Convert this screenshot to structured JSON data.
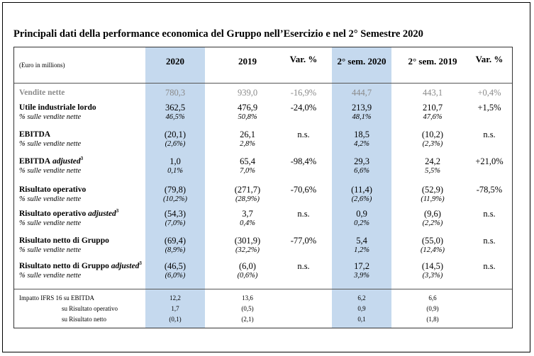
{
  "title": "Principali dati della performance economica del Gruppo nell’Esercizio e nel 2° Semestre 2020",
  "unit_note": "(Euro in millions)",
  "headers": [
    "2020",
    "2019",
    "Var. %",
    "2° sem. 2020",
    "2° sem. 2019",
    "Var. %"
  ],
  "rows": [
    {
      "label": "Vendite nette",
      "values": [
        "780,3",
        "939,0",
        "-16,9%",
        "444,7",
        "443,1",
        "+0,4%"
      ],
      "sub_label": "",
      "sub_values": [
        "",
        "",
        "",
        ""
      ]
    },
    {
      "label": "Utile industriale lordo",
      "values": [
        "362,5",
        "476,9",
        "-24,0%",
        "213,9",
        "210,7",
        "+1,5%"
      ],
      "sub_label": "% sulle vendite nette",
      "sub_values": [
        "46,5%",
        "50,8%",
        "48,1%",
        "47,6%"
      ]
    },
    {
      "label": "EBITDA",
      "values": [
        "(20,1)",
        "26,1",
        "n.s.",
        "18,5",
        "(10,2)",
        "n.s."
      ],
      "sub_label": "% sulle vendite nette",
      "sub_values": [
        "(2,6%)",
        "2,8%",
        "4,2%",
        "(2,3%)"
      ]
    },
    {
      "label": "EBITDA",
      "label_italic": "adjusted",
      "sup": "3",
      "values": [
        "1,0",
        "65,4",
        "-98,4%",
        "29,3",
        "24,2",
        "+21,0%"
      ],
      "sub_label": "% sulle vendite nette",
      "sub_values": [
        "0,1%",
        "7,0%",
        "6,6%",
        "5,5%"
      ]
    },
    {
      "label": "Risultato operativo",
      "values": [
        "(79,8)",
        "(271,7)",
        "-70,6%",
        "(11,4)",
        "(52,9)",
        "-78,5%"
      ],
      "sub_label": "% sulle vendite nette",
      "sub_values": [
        "(10,2%)",
        "(28,9%)",
        "(2,6%)",
        "(11,9%)"
      ]
    },
    {
      "label": "Risultato operativo",
      "label_italic": "adjusted",
      "sup": "3",
      "values": [
        "(54,3)",
        "3,7",
        "n.s.",
        "0,9",
        "(9,6)",
        "n.s."
      ],
      "sub_label": "% sulle vendite nette",
      "sub_values": [
        "(7,0%)",
        "0,4%",
        "0,2%",
        "(2,2%)"
      ]
    },
    {
      "label": "Risultato netto di Gruppo",
      "values": [
        "(69,4)",
        "(301,9)",
        "-77,0%",
        "5,4",
        "(55,0)",
        "n.s."
      ],
      "sub_label": "% sulle vendite nette",
      "sub_values": [
        "(8,9%)",
        "(32,2%)",
        "1,2%",
        "(12,4%)"
      ]
    },
    {
      "label": "Risultato netto di Gruppo",
      "label_italic": "adjusted",
      "sup": "3",
      "values": [
        "(46,5)",
        "(6,0)",
        "n.s.",
        "17,2",
        "(14,5)",
        "n.s."
      ],
      "sub_label": "% sulle vendite nette",
      "sub_values": [
        "(6,0%)",
        "(0,6%)",
        "3,9%",
        "(3,3%)"
      ]
    }
  ],
  "ifrs": [
    {
      "label": "Impatto IFRS 16 su EBITDA",
      "values": [
        "12,2",
        "13,6",
        "6,2",
        "6,6"
      ]
    },
    {
      "label": "su Risultato operativo",
      "values": [
        "1,7",
        "(0,5)",
        "0,9",
        "(0,9)"
      ]
    },
    {
      "label": "su Risultato netto",
      "values": [
        "(0,1)",
        "(2,1)",
        "0,1",
        "(1,8)"
      ]
    }
  ]
}
